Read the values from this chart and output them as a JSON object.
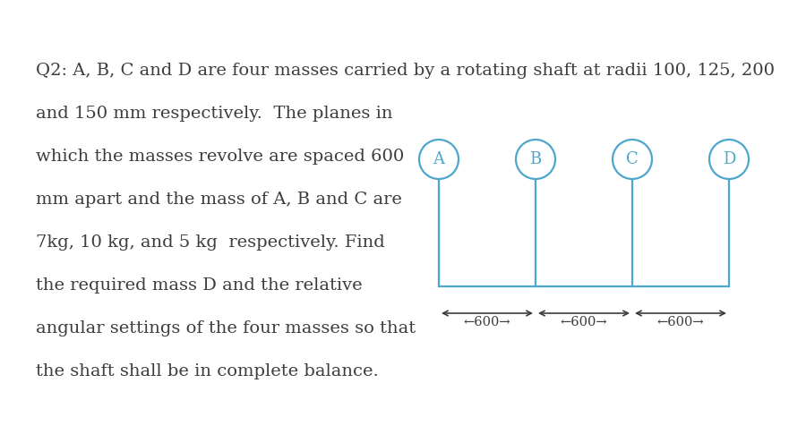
{
  "background_color": "#ffffff",
  "text_color": "#3d3d3d",
  "diagram_color": "#4da6cc",
  "line1": "Q2: A, B, C and D are four masses carried by a rotating shaft at radii 100, 125, 200",
  "line2": "and 150 mm respectively.  The planes in",
  "line3": "which the masses revolve are spaced 600",
  "line4": "mm apart and the mass of A, B and C are",
  "line5": "7kg, 10 kg, and 5 kg  respectively. Find",
  "line6": "the required mass D and the relative",
  "line7": "angular settings of the four masses so that",
  "line8": "the shaft shall be in complete balance.",
  "labels": [
    "A",
    "B",
    "C",
    "D"
  ],
  "font_size_text": 14,
  "font_size_label": 13,
  "diagram_color_label": "#4da6cc",
  "spacing_text": "←600→←600→←600→"
}
